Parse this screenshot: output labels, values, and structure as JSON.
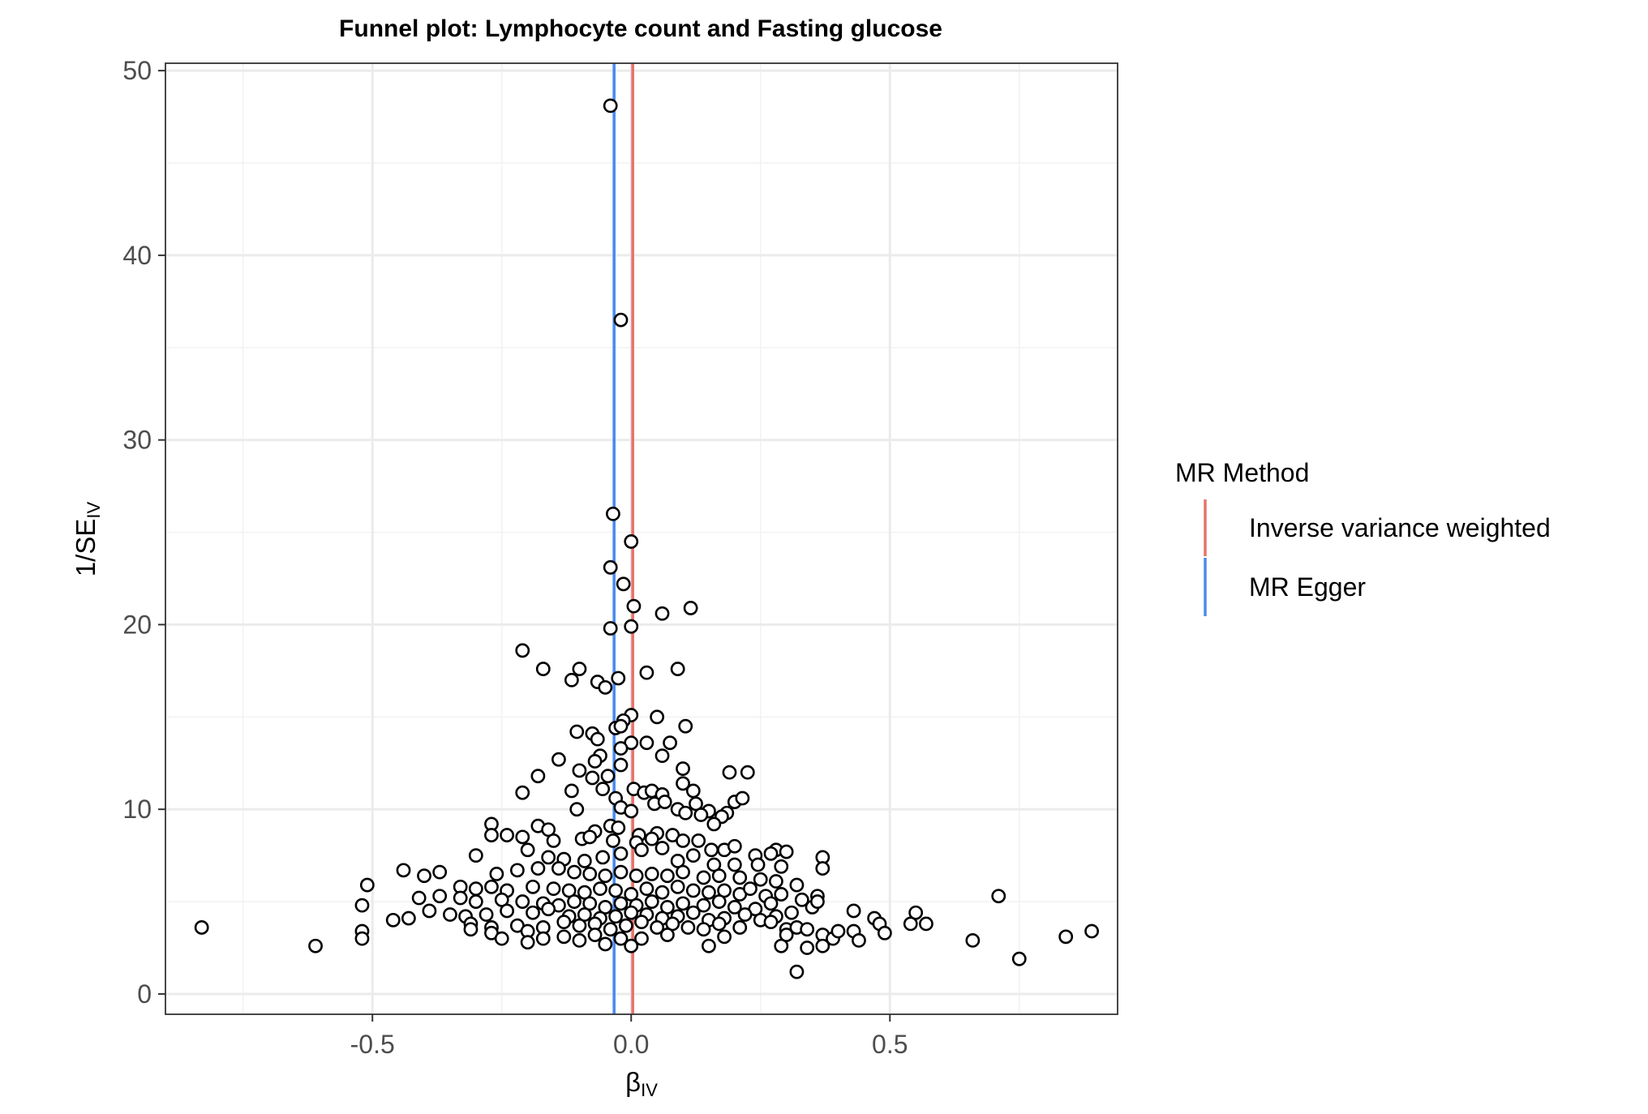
{
  "chart_data": {
    "type": "scatter",
    "title": "Funnel plot: Lymphocyte count and Fasting glucose",
    "xlabel": {
      "main": "β",
      "sub": "IV"
    },
    "ylabel": {
      "main": "1/SE",
      "sub": "IV"
    },
    "xlim": [
      -0.9,
      0.94
    ],
    "ylim": [
      -1.1,
      50.4
    ],
    "x_ticks": [
      -0.5,
      0.0,
      0.5
    ],
    "x_tick_labels": [
      "-0.5",
      "0.0",
      "0.5"
    ],
    "y_ticks": [
      0,
      10,
      20,
      30,
      40,
      50
    ],
    "y_tick_labels": [
      "0",
      "10",
      "20",
      "30",
      "40",
      "50"
    ],
    "grid": true,
    "legend": {
      "title": "MR Method",
      "position": "right",
      "entries": [
        {
          "label": "Inverse variance weighted",
          "color": "#E7736A"
        },
        {
          "label": "MR Egger",
          "color": "#4A8BEF"
        }
      ]
    },
    "vlines": [
      {
        "method": "Inverse variance weighted",
        "x": 0.003,
        "color": "#E7736A"
      },
      {
        "method": "MR Egger",
        "x": -0.033,
        "color": "#4A8BEF"
      }
    ],
    "points": [
      [
        -0.04,
        48.1
      ],
      [
        -0.02,
        36.5
      ],
      [
        -0.035,
        26.0
      ],
      [
        0.0,
        24.5
      ],
      [
        -0.04,
        23.1
      ],
      [
        -0.015,
        22.2
      ],
      [
        0.005,
        21.0
      ],
      [
        0.06,
        20.6
      ],
      [
        0.115,
        20.9
      ],
      [
        -0.04,
        19.8
      ],
      [
        0.0,
        19.9
      ],
      [
        -0.21,
        18.6
      ],
      [
        -0.17,
        17.6
      ],
      [
        -0.1,
        17.6
      ],
      [
        0.03,
        17.4
      ],
      [
        0.09,
        17.6
      ],
      [
        -0.115,
        17.0
      ],
      [
        -0.065,
        16.9
      ],
      [
        -0.05,
        16.6
      ],
      [
        -0.025,
        17.1
      ],
      [
        0.0,
        15.1
      ],
      [
        -0.015,
        14.8
      ],
      [
        0.05,
        15.0
      ],
      [
        0.105,
        14.5
      ],
      [
        -0.105,
        14.2
      ],
      [
        -0.075,
        14.1
      ],
      [
        -0.03,
        14.4
      ],
      [
        -0.02,
        14.5
      ],
      [
        -0.065,
        13.8
      ],
      [
        0.0,
        13.6
      ],
      [
        0.03,
        13.6
      ],
      [
        0.075,
        13.6
      ],
      [
        -0.02,
        13.3
      ],
      [
        -0.06,
        12.9
      ],
      [
        -0.14,
        12.7
      ],
      [
        -0.07,
        12.6
      ],
      [
        0.06,
        12.9
      ],
      [
        -0.02,
        12.4
      ],
      [
        -0.1,
        12.1
      ],
      [
        -0.045,
        11.8
      ],
      [
        -0.075,
        11.7
      ],
      [
        -0.18,
        11.8
      ],
      [
        0.1,
        12.2
      ],
      [
        0.19,
        12.0
      ],
      [
        0.225,
        12.0
      ],
      [
        -0.21,
        10.9
      ],
      [
        -0.115,
        11.0
      ],
      [
        -0.055,
        11.1
      ],
      [
        0.005,
        11.1
      ],
      [
        0.025,
        10.9
      ],
      [
        0.04,
        11.0
      ],
      [
        0.06,
        10.8
      ],
      [
        0.1,
        11.4
      ],
      [
        0.12,
        11.0
      ],
      [
        -0.03,
        10.6
      ],
      [
        -0.02,
        10.1
      ],
      [
        0.045,
        10.3
      ],
      [
        0.065,
        10.4
      ],
      [
        0.09,
        10.0
      ],
      [
        0.125,
        10.3
      ],
      [
        0.2,
        10.4
      ],
      [
        0.215,
        10.6
      ],
      [
        -0.105,
        10.0
      ],
      [
        0.0,
        9.9
      ],
      [
        0.105,
        9.8
      ],
      [
        0.15,
        9.9
      ],
      [
        0.185,
        9.8
      ],
      [
        0.175,
        9.6
      ],
      [
        0.16,
        9.2
      ],
      [
        0.135,
        9.7
      ],
      [
        -0.27,
        9.2
      ],
      [
        -0.18,
        9.1
      ],
      [
        -0.16,
        8.9
      ],
      [
        -0.07,
        8.8
      ],
      [
        -0.04,
        9.1
      ],
      [
        -0.025,
        9.0
      ],
      [
        0.015,
        8.6
      ],
      [
        0.05,
        8.7
      ],
      [
        0.08,
        8.6
      ],
      [
        -0.27,
        8.6
      ],
      [
        -0.24,
        8.6
      ],
      [
        -0.21,
        8.5
      ],
      [
        -0.15,
        8.3
      ],
      [
        -0.095,
        8.4
      ],
      [
        -0.08,
        8.5
      ],
      [
        -0.035,
        8.3
      ],
      [
        0.01,
        8.2
      ],
      [
        0.04,
        8.4
      ],
      [
        0.1,
        8.3
      ],
      [
        0.13,
        8.3
      ],
      [
        0.155,
        7.8
      ],
      [
        0.18,
        7.8
      ],
      [
        0.2,
        8.0
      ],
      [
        0.24,
        7.5
      ],
      [
        0.28,
        7.8
      ],
      [
        0.3,
        7.7
      ],
      [
        0.37,
        7.4
      ],
      [
        -0.3,
        7.5
      ],
      [
        -0.2,
        7.8
      ],
      [
        -0.16,
        7.4
      ],
      [
        -0.13,
        7.3
      ],
      [
        -0.09,
        7.2
      ],
      [
        -0.055,
        7.4
      ],
      [
        -0.02,
        7.6
      ],
      [
        0.02,
        7.8
      ],
      [
        0.06,
        7.9
      ],
      [
        0.09,
        7.2
      ],
      [
        0.12,
        7.5
      ],
      [
        0.16,
        7.0
      ],
      [
        0.2,
        7.0
      ],
      [
        0.245,
        7.0
      ],
      [
        0.27,
        7.6
      ],
      [
        0.29,
        6.9
      ],
      [
        0.37,
        6.8
      ],
      [
        -0.44,
        6.7
      ],
      [
        -0.4,
        6.4
      ],
      [
        -0.37,
        6.6
      ],
      [
        -0.26,
        6.5
      ],
      [
        -0.22,
        6.7
      ],
      [
        -0.18,
        6.8
      ],
      [
        -0.14,
        6.8
      ],
      [
        -0.11,
        6.6
      ],
      [
        -0.08,
        6.5
      ],
      [
        -0.05,
        6.4
      ],
      [
        -0.02,
        6.6
      ],
      [
        0.01,
        6.4
      ],
      [
        0.04,
        6.5
      ],
      [
        0.07,
        6.4
      ],
      [
        0.1,
        6.6
      ],
      [
        0.14,
        6.3
      ],
      [
        0.17,
        6.4
      ],
      [
        0.21,
        6.3
      ],
      [
        0.25,
        6.2
      ],
      [
        0.28,
        6.1
      ],
      [
        0.32,
        5.9
      ],
      [
        -0.51,
        5.9
      ],
      [
        -0.33,
        5.8
      ],
      [
        -0.3,
        5.7
      ],
      [
        -0.27,
        5.8
      ],
      [
        -0.24,
        5.6
      ],
      [
        -0.19,
        5.8
      ],
      [
        -0.15,
        5.7
      ],
      [
        -0.12,
        5.6
      ],
      [
        -0.09,
        5.5
      ],
      [
        -0.06,
        5.7
      ],
      [
        -0.03,
        5.6
      ],
      [
        0.0,
        5.4
      ],
      [
        0.03,
        5.7
      ],
      [
        0.06,
        5.5
      ],
      [
        0.09,
        5.8
      ],
      [
        0.12,
        5.6
      ],
      [
        0.15,
        5.5
      ],
      [
        0.18,
        5.6
      ],
      [
        0.21,
        5.4
      ],
      [
        0.23,
        5.7
      ],
      [
        0.26,
        5.3
      ],
      [
        0.29,
        5.4
      ],
      [
        0.33,
        5.1
      ],
      [
        0.36,
        5.3
      ],
      [
        -0.41,
        5.2
      ],
      [
        -0.37,
        5.3
      ],
      [
        -0.33,
        5.2
      ],
      [
        -0.3,
        5.0
      ],
      [
        -0.25,
        5.1
      ],
      [
        -0.21,
        5.0
      ],
      [
        -0.17,
        4.9
      ],
      [
        -0.14,
        4.8
      ],
      [
        -0.11,
        5.0
      ],
      [
        -0.08,
        4.9
      ],
      [
        -0.05,
        4.7
      ],
      [
        -0.02,
        4.9
      ],
      [
        0.01,
        4.8
      ],
      [
        0.04,
        5.0
      ],
      [
        0.07,
        4.7
      ],
      [
        0.1,
        4.9
      ],
      [
        0.14,
        4.8
      ],
      [
        0.17,
        5.0
      ],
      [
        0.2,
        4.7
      ],
      [
        0.24,
        4.6
      ],
      [
        0.27,
        4.9
      ],
      [
        0.31,
        4.4
      ],
      [
        0.35,
        4.7
      ],
      [
        0.36,
        5.0
      ],
      [
        -0.52,
        4.8
      ],
      [
        -0.39,
        4.5
      ],
      [
        -0.35,
        4.3
      ],
      [
        -0.32,
        4.2
      ],
      [
        -0.28,
        4.3
      ],
      [
        -0.24,
        4.5
      ],
      [
        -0.19,
        4.4
      ],
      [
        -0.16,
        4.6
      ],
      [
        -0.12,
        4.2
      ],
      [
        -0.09,
        4.3
      ],
      [
        -0.06,
        4.1
      ],
      [
        -0.03,
        4.2
      ],
      [
        0.0,
        4.4
      ],
      [
        0.03,
        4.3
      ],
      [
        0.06,
        4.1
      ],
      [
        0.09,
        4.2
      ],
      [
        0.12,
        4.4
      ],
      [
        0.15,
        4.0
      ],
      [
        0.18,
        4.1
      ],
      [
        0.22,
        4.3
      ],
      [
        0.25,
        4.0
      ],
      [
        0.28,
        4.2
      ],
      [
        0.43,
        4.5
      ],
      [
        0.47,
        4.1
      ],
      [
        0.55,
        4.4
      ],
      [
        0.71,
        5.3
      ],
      [
        -0.83,
        3.6
      ],
      [
        -0.52,
        3.4
      ],
      [
        -0.46,
        4.0
      ],
      [
        -0.43,
        4.1
      ],
      [
        -0.31,
        3.8
      ],
      [
        -0.27,
        3.6
      ],
      [
        -0.22,
        3.7
      ],
      [
        -0.2,
        3.4
      ],
      [
        -0.17,
        3.6
      ],
      [
        -0.13,
        3.9
      ],
      [
        -0.1,
        3.7
      ],
      [
        -0.07,
        3.8
      ],
      [
        -0.04,
        3.5
      ],
      [
        -0.01,
        3.7
      ],
      [
        0.02,
        3.9
      ],
      [
        0.05,
        3.6
      ],
      [
        0.08,
        3.8
      ],
      [
        0.11,
        3.6
      ],
      [
        0.14,
        3.5
      ],
      [
        0.17,
        3.8
      ],
      [
        0.21,
        3.6
      ],
      [
        0.27,
        3.9
      ],
      [
        0.3,
        3.5
      ],
      [
        0.32,
        3.6
      ],
      [
        0.34,
        3.5
      ],
      [
        0.37,
        3.2
      ],
      [
        0.39,
        3.0
      ],
      [
        0.4,
        3.4
      ],
      [
        0.43,
        3.4
      ],
      [
        0.48,
        3.8
      ],
      [
        0.49,
        3.3
      ],
      [
        0.54,
        3.8
      ],
      [
        0.57,
        3.8
      ],
      [
        -0.61,
        2.6
      ],
      [
        -0.52,
        3.0
      ],
      [
        -0.31,
        3.5
      ],
      [
        -0.27,
        3.3
      ],
      [
        -0.25,
        3.0
      ],
      [
        -0.2,
        2.8
      ],
      [
        -0.17,
        3.0
      ],
      [
        -0.13,
        3.1
      ],
      [
        -0.1,
        2.9
      ],
      [
        -0.07,
        3.2
      ],
      [
        -0.05,
        2.7
      ],
      [
        -0.02,
        3.0
      ],
      [
        0.0,
        2.6
      ],
      [
        0.02,
        3.0
      ],
      [
        0.07,
        3.2
      ],
      [
        0.15,
        2.6
      ],
      [
        0.18,
        3.1
      ],
      [
        0.29,
        2.6
      ],
      [
        0.3,
        3.2
      ],
      [
        0.34,
        2.5
      ],
      [
        0.37,
        2.6
      ],
      [
        0.44,
        2.9
      ],
      [
        0.66,
        2.9
      ],
      [
        0.75,
        1.9
      ],
      [
        0.84,
        3.1
      ],
      [
        0.89,
        3.4
      ],
      [
        0.32,
        1.2
      ]
    ]
  }
}
